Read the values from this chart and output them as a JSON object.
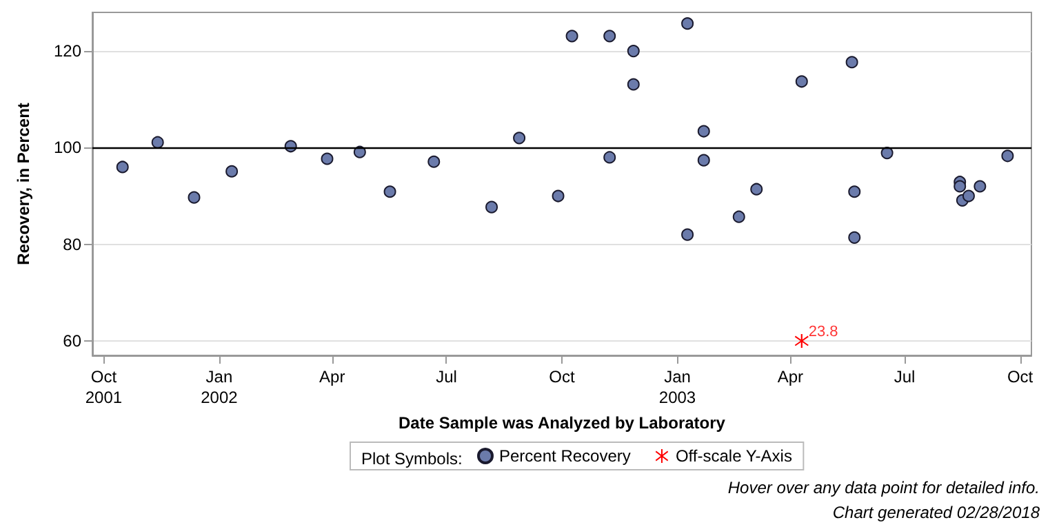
{
  "chart_data": {
    "type": "scatter",
    "xlabel": "Date Sample was Analyzed by Laboratory",
    "ylabel": "Recovery, in Percent",
    "legend_title": "Plot Symbols:",
    "annotations": [
      "Hover over any data point for detailed info.",
      "Chart generated 02/28/2018",
      {
        "text": "23.8",
        "x": "2003-04-10",
        "y": 60
      }
    ],
    "xlim": [
      "2001-09-22",
      "2003-10-10"
    ],
    "xticks": [
      {
        "value": "2001-10-01",
        "label": "Oct\n2001"
      },
      {
        "value": "2002-01-01",
        "label": "Jan\n2002"
      },
      {
        "value": "2002-04-01",
        "label": "Apr"
      },
      {
        "value": "2002-07-01",
        "label": "Jul"
      },
      {
        "value": "2002-10-01",
        "label": "Oct"
      },
      {
        "value": "2003-01-01",
        "label": "Jan\n2003"
      },
      {
        "value": "2003-04-01",
        "label": "Apr"
      },
      {
        "value": "2003-07-01",
        "label": "Jul"
      },
      {
        "value": "2003-10-01",
        "label": "Oct"
      }
    ],
    "ylim": [
      57,
      128
    ],
    "yticks": [
      60,
      80,
      100,
      120
    ],
    "grid": "y",
    "legend": "bottom",
    "ref_lines": [
      {
        "axis": "y",
        "value": 100,
        "color": "#000000"
      }
    ],
    "series": [
      {
        "name": "Percent Recovery",
        "color": "#6b7bab",
        "marker": "circle",
        "x": [
          "2001-10-16",
          "2001-11-13",
          "2001-12-12",
          "2002-01-11",
          "2002-02-27",
          "2002-03-28",
          "2002-04-23",
          "2002-05-17",
          "2002-06-21",
          "2002-08-06",
          "2002-08-28",
          "2002-09-28",
          "2002-10-09",
          "2002-11-08",
          "2002-11-08",
          "2002-11-27",
          "2002-11-27",
          "2003-01-09",
          "2003-01-09",
          "2003-01-22",
          "2003-01-22",
          "2003-02-19",
          "2003-03-05",
          "2003-04-10",
          "2003-05-20",
          "2003-05-22",
          "2003-05-22",
          "2003-06-17",
          "2003-08-14",
          "2003-08-14",
          "2003-08-16",
          "2003-08-21",
          "2003-08-30",
          "2003-09-21"
        ],
        "values": [
          96.0,
          101.1,
          89.7,
          95.1,
          100.3,
          97.7,
          99.1,
          90.9,
          97.1,
          87.7,
          102.0,
          90.0,
          123.1,
          123.1,
          98.0,
          120.0,
          113.1,
          125.7,
          82.0,
          103.4,
          97.4,
          85.7,
          91.4,
          113.7,
          117.7,
          90.9,
          81.4,
          98.9,
          92.9,
          92.0,
          89.1,
          90.0,
          92.0,
          98.3
        ]
      },
      {
        "name": "Off-scale Y-Axis",
        "color": "#ff0000",
        "marker": "cross",
        "x": [
          "2003-04-10"
        ],
        "values": [
          60
        ]
      }
    ]
  }
}
